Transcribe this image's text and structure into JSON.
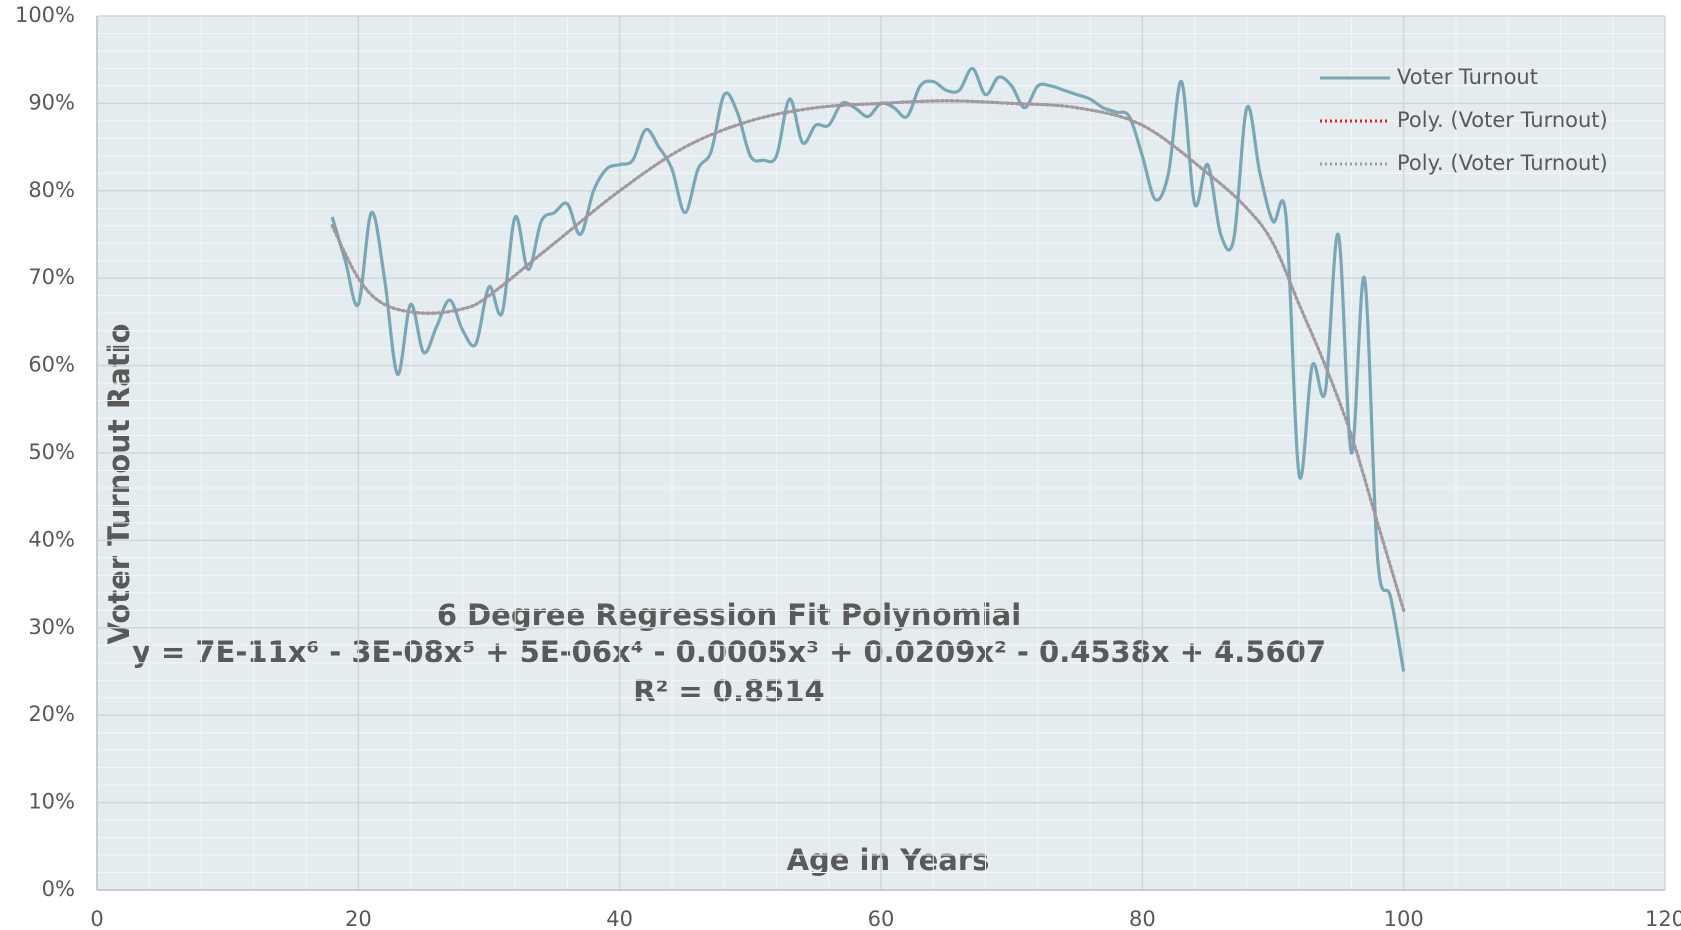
{
  "chart_data": {
    "type": "line",
    "x_label": "Age in Years",
    "y_label": "Voter Turnout Ratio",
    "annotation": [
      "6 Degree Regression Fit Polynomial",
      "y = 7E-11x⁶ - 3E-08x⁵ + 5E-06x⁴ - 0.0005x³ + 0.0209x² - 0.4538x + 4.5607",
      "R² = 0.8514"
    ],
    "xlim": [
      0,
      120
    ],
    "xticks": [
      0,
      20,
      40,
      60,
      80,
      100,
      120
    ],
    "ylim": [
      0,
      100
    ],
    "yticks": [
      {
        "value": 0,
        "label": "0%"
      },
      {
        "value": 10,
        "label": "10%"
      },
      {
        "value": 20,
        "label": "20%"
      },
      {
        "value": 30,
        "label": "30%"
      },
      {
        "value": 40,
        "label": "40%"
      },
      {
        "value": 50,
        "label": "50%"
      },
      {
        "value": 60,
        "label": "60%"
      },
      {
        "value": 70,
        "label": "70%"
      },
      {
        "value": 80,
        "label": "80%"
      },
      {
        "value": 90,
        "label": "90%"
      },
      {
        "value": 100,
        "label": "100%"
      }
    ],
    "grid": true,
    "legend": "upper right",
    "series": [
      {
        "name": "Voter Turnout",
        "color": "#7aa7b6",
        "style": "solid",
        "x": [
          18,
          19,
          20,
          21,
          22,
          23,
          24,
          25,
          26,
          27,
          28,
          29,
          30,
          31,
          32,
          33,
          34,
          35,
          36,
          37,
          38,
          39,
          40,
          41,
          42,
          43,
          44,
          45,
          46,
          47,
          48,
          49,
          50,
          51,
          52,
          53,
          54,
          55,
          56,
          57,
          58,
          59,
          60,
          61,
          62,
          63,
          64,
          65,
          66,
          67,
          68,
          69,
          70,
          71,
          72,
          73,
          74,
          75,
          76,
          77,
          78,
          79,
          80,
          81,
          82,
          83,
          84,
          85,
          86,
          87,
          88,
          89,
          90,
          91,
          92,
          93,
          94,
          95,
          96,
          97,
          98,
          99,
          100
        ],
        "values": [
          77,
          72,
          67,
          77.5,
          70,
          59,
          67,
          61.5,
          64.5,
          67.5,
          64,
          62.5,
          69,
          66,
          77,
          71,
          76.5,
          77.5,
          78.5,
          75,
          80,
          82.5,
          83,
          83.5,
          87,
          85,
          82.5,
          77.5,
          82.5,
          84.5,
          91,
          89,
          84,
          83.5,
          84,
          90.5,
          85.5,
          87.5,
          87.5,
          90,
          89.5,
          88.5,
          90,
          89.5,
          88.5,
          92,
          92.5,
          91.5,
          91.5,
          94,
          91,
          93,
          92,
          89.5,
          92,
          92,
          91.5,
          91,
          90.5,
          89.5,
          89,
          88.5,
          84,
          79,
          82,
          92.5,
          78.5,
          83,
          75,
          74.5,
          89.5,
          82,
          76.5,
          77,
          47.5,
          60,
          57,
          75,
          50,
          70,
          38,
          33.5,
          25
        ]
      },
      {
        "name": "Poly. (Voter Turnout)",
        "color": "#e02020",
        "style": "dotted",
        "x": [
          18,
          20,
          22,
          25,
          28,
          30,
          35,
          40,
          45,
          50,
          55,
          60,
          65,
          70,
          75,
          80,
          85,
          88,
          90,
          92,
          94,
          96,
          98,
          100
        ],
        "values": [
          76,
          70,
          67,
          66,
          66.5,
          68,
          74,
          80,
          85,
          88,
          89.5,
          90,
          90.3,
          90,
          89.5,
          87.5,
          82,
          78,
          74,
          67,
          60,
          52,
          42,
          32
        ]
      },
      {
        "name": "Poly. (Voter Turnout)",
        "color": "#9a9ea2",
        "style": "dotted",
        "x": [
          18,
          20,
          22,
          25,
          28,
          30,
          35,
          40,
          45,
          50,
          55,
          60,
          65,
          70,
          75,
          80,
          85,
          88,
          90,
          92,
          94,
          96,
          98,
          100
        ],
        "values": [
          76,
          70,
          67,
          66,
          66.5,
          68,
          74,
          80,
          85,
          88,
          89.5,
          90,
          90.3,
          90,
          89.5,
          87.5,
          82,
          78,
          74,
          67,
          60,
          52,
          42,
          32
        ]
      }
    ]
  }
}
